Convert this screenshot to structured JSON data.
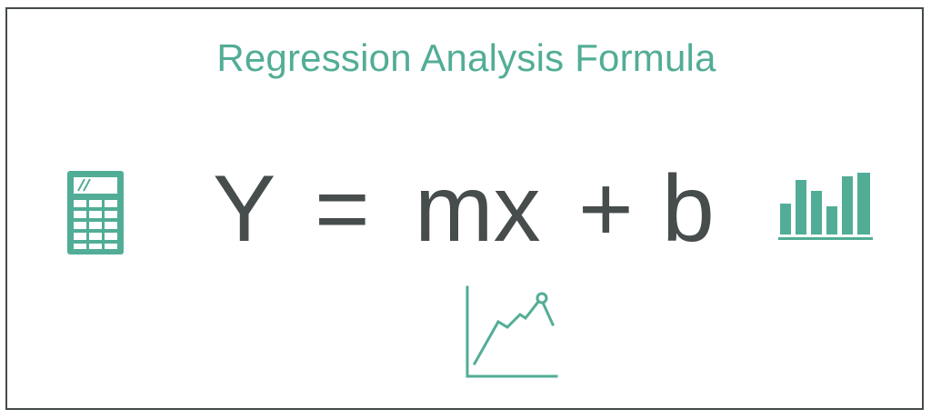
{
  "title": "Regression Analysis Formula",
  "formula": {
    "y": "Y",
    "equals": "=",
    "mx": "mx",
    "plus": "+",
    "b": "b"
  },
  "colors": {
    "accent": "#52ad96",
    "formula_text": "#474c4c",
    "border": "#444a4a"
  },
  "icons": [
    "calculator-icon",
    "bar-chart-icon",
    "line-chart-icon"
  ]
}
